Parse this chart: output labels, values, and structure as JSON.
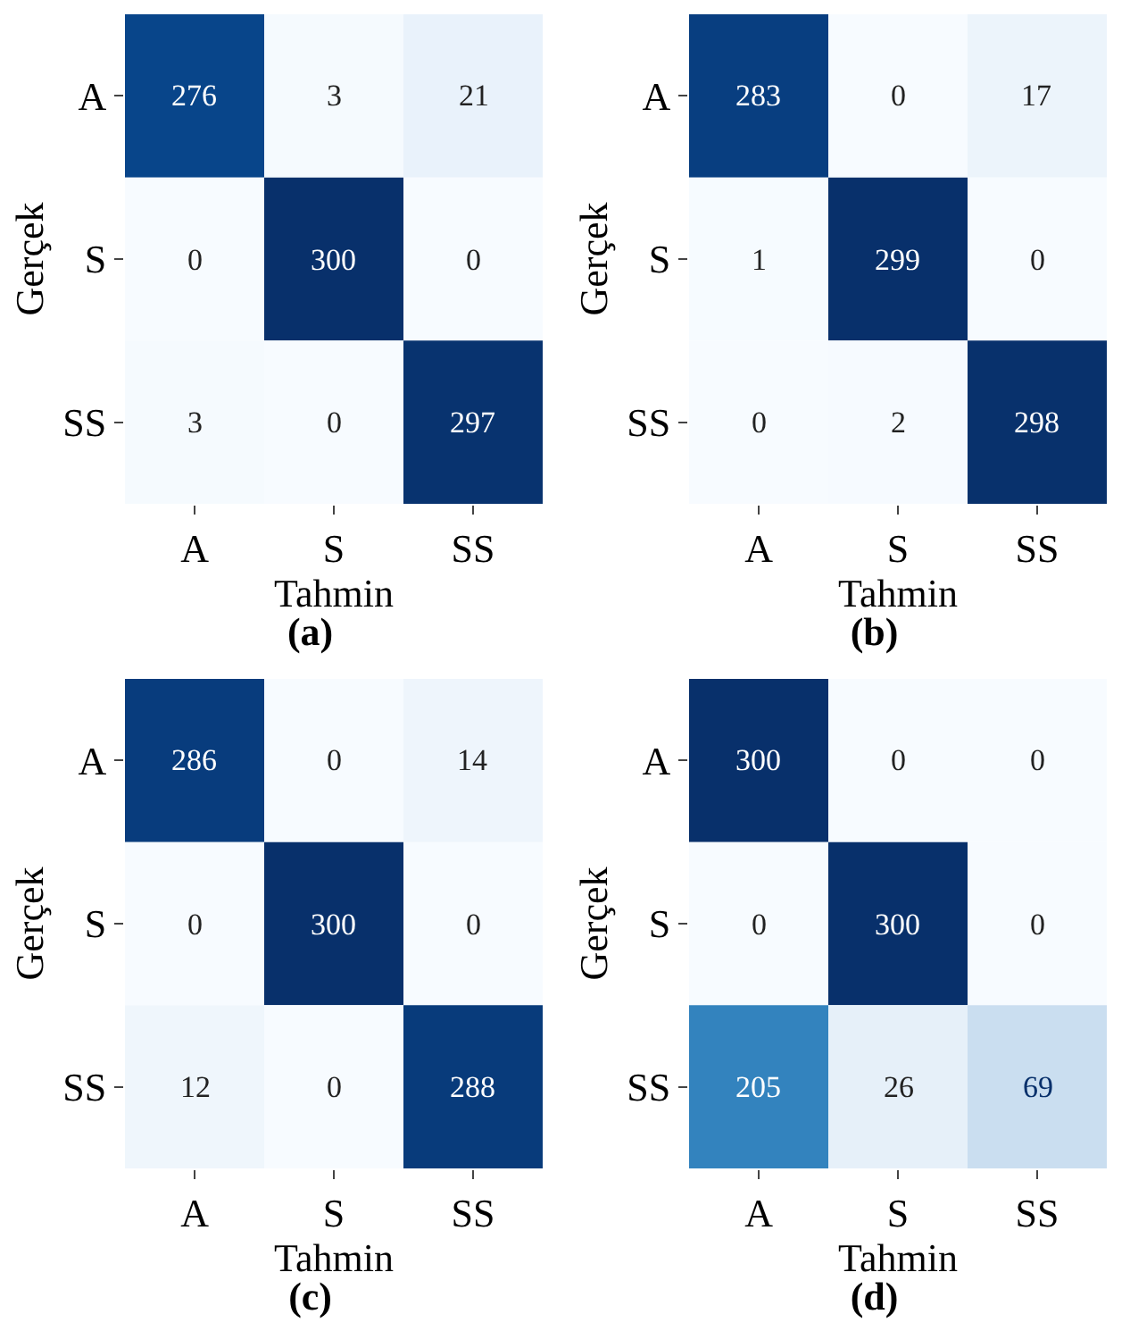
{
  "chart_data": [
    {
      "type": "heatmap",
      "title": "(a)",
      "xlabel": "Tahmin",
      "ylabel": "Gerçek",
      "categories": [
        "A",
        "S",
        "SS"
      ],
      "y_categories": [
        "A",
        "S",
        "SS"
      ],
      "data_labels": true,
      "cells": [
        [
          276,
          3,
          21
        ],
        [
          0,
          300,
          0
        ],
        [
          3,
          0,
          297
        ]
      ]
    },
    {
      "type": "heatmap",
      "title": "(b)",
      "xlabel": "Tahmin",
      "ylabel": "Gerçek",
      "categories": [
        "A",
        "S",
        "SS"
      ],
      "y_categories": [
        "A",
        "S",
        "SS"
      ],
      "data_labels": true,
      "cells": [
        [
          283,
          0,
          17
        ],
        [
          1,
          299,
          0
        ],
        [
          0,
          2,
          298
        ]
      ]
    },
    {
      "type": "heatmap",
      "title": "(c)",
      "xlabel": "Tahmin",
      "ylabel": "Gerçek",
      "categories": [
        "A",
        "S",
        "SS"
      ],
      "y_categories": [
        "A",
        "S",
        "SS"
      ],
      "data_labels": true,
      "cells": [
        [
          286,
          0,
          14
        ],
        [
          0,
          300,
          0
        ],
        [
          12,
          0,
          288
        ]
      ]
    },
    {
      "type": "heatmap",
      "title": "(d)",
      "xlabel": "Tahmin",
      "ylabel": "Gerçek",
      "categories": [
        "A",
        "S",
        "SS"
      ],
      "y_categories": [
        "A",
        "S",
        "SS"
      ],
      "data_labels": true,
      "cells": [
        [
          300,
          0,
          0
        ],
        [
          0,
          300,
          0
        ],
        [
          205,
          26,
          69
        ]
      ]
    }
  ]
}
